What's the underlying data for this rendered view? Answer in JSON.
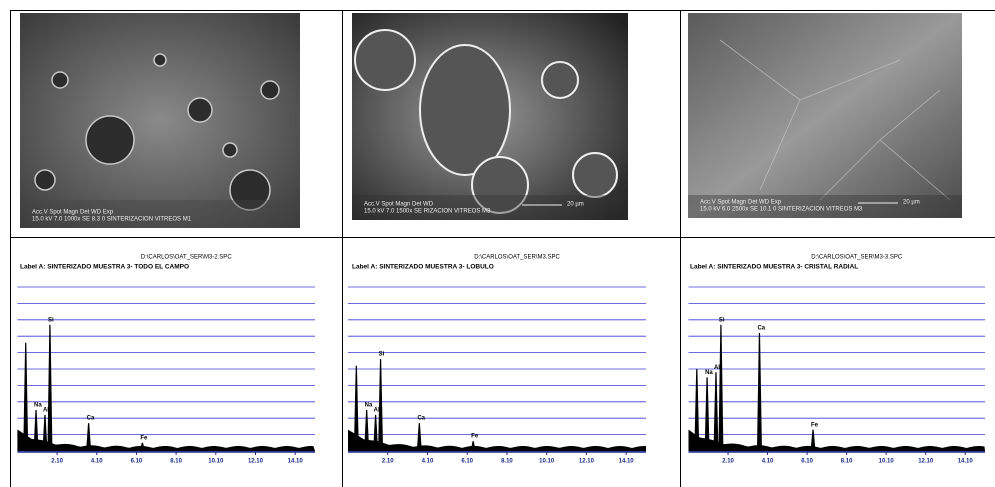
{
  "panels": [
    {
      "image": {
        "caption_top": "Acc.V  Spot Magn    Det  WD  Exp",
        "caption_bottom": "15.0 kV 7.0   1000x   SE   8.3   0    SINTERIZACION VITREOS M1",
        "scale": null
      },
      "spectrum": {
        "file": "D:\\CARLOS\\OAT_SER\\M3-2.SPC",
        "label": "Label A:  SINTERIZADO MUESTRA 3- TODO EL CAMPO",
        "xlim": [
          0.1,
          15.1
        ],
        "ylim": [
          0,
          100
        ],
        "xticks": [
          {
            "value": 2.1,
            "label": "2.10"
          },
          {
            "value": 4.1,
            "label": "4.10"
          },
          {
            "value": 6.1,
            "label": "6.10"
          },
          {
            "value": 8.1,
            "label": "8.10"
          },
          {
            "value": 10.1,
            "label": "10.10"
          },
          {
            "value": 12.1,
            "label": "12.10"
          },
          {
            "value": 14.1,
            "label": "14.10"
          }
        ],
        "peaks": [
          {
            "name": null,
            "x": 0.52,
            "y": 66
          },
          {
            "name": "Na",
            "x": 1.04,
            "y": 25
          },
          {
            "name": "Al",
            "x": 1.49,
            "y": 22
          },
          {
            "name": "Si",
            "x": 1.74,
            "y": 77
          },
          {
            "name": "Ca",
            "x": 3.69,
            "y": 17
          },
          {
            "name": "Fe",
            "x": 6.4,
            "y": 5
          }
        ]
      }
    },
    {
      "image": {
        "caption_top": "Acc.V  Spot Magn    Det  WD",
        "caption_bottom": "15.0 kV 7.0   1500x   SE    RIZACION VITREOS M3",
        "scale": "20 µm"
      },
      "spectrum": {
        "file": "D:\\CARLOS\\OAT_SER\\M3.SPC",
        "label": "Label A:  SINTERIZADO MUESTRA 3- LOBULO",
        "xlim": [
          0.1,
          15.1
        ],
        "ylim": [
          0,
          100
        ],
        "xticks": [
          {
            "value": 2.1,
            "label": "2.10"
          },
          {
            "value": 4.1,
            "label": "4.10"
          },
          {
            "value": 6.1,
            "label": "6.10"
          },
          {
            "value": 8.1,
            "label": "8.10"
          },
          {
            "value": 10.1,
            "label": "10.10"
          },
          {
            "value": 12.1,
            "label": "12.10"
          },
          {
            "value": 14.1,
            "label": "14.10"
          }
        ],
        "peaks": [
          {
            "name": null,
            "x": 0.52,
            "y": 52
          },
          {
            "name": "Na",
            "x": 1.04,
            "y": 25
          },
          {
            "name": "Al",
            "x": 1.49,
            "y": 22
          },
          {
            "name": "Si",
            "x": 1.74,
            "y": 56
          },
          {
            "name": "Ca",
            "x": 3.69,
            "y": 17
          },
          {
            "name": "Fe",
            "x": 6.4,
            "y": 6
          }
        ]
      }
    },
    {
      "image": {
        "caption_top": "Acc.V  Spot Magn    Det  WD  Exp",
        "caption_bottom": "15.0 kV 6.0   2500x   SE   10.1  0    SINTERIZACION VITREOS M3",
        "scale": "20 µm"
      },
      "spectrum": {
        "file": "D:\\CARLOS\\OAT_SER\\M3-3.SPC",
        "label": "Label A:  SINTERIZADO MUESTRA 3- CRISTAL RADIAL",
        "xlim": [
          0.1,
          15.1
        ],
        "ylim": [
          0,
          100
        ],
        "xticks": [
          {
            "value": 2.1,
            "label": "2.10"
          },
          {
            "value": 4.1,
            "label": "4.10"
          },
          {
            "value": 6.1,
            "label": "6.10"
          },
          {
            "value": 8.1,
            "label": "8.10"
          },
          {
            "value": 10.1,
            "label": "10.10"
          },
          {
            "value": 12.1,
            "label": "12.10"
          },
          {
            "value": 14.1,
            "label": "14.10"
          }
        ],
        "peaks": [
          {
            "name": null,
            "x": 0.52,
            "y": 50
          },
          {
            "name": "Na",
            "x": 1.04,
            "y": 45
          },
          {
            "name": "Al",
            "x": 1.49,
            "y": 48
          },
          {
            "name": "Si",
            "x": 1.74,
            "y": 77
          },
          {
            "name": "Ca",
            "x": 3.69,
            "y": 72
          },
          {
            "name": "Fe",
            "x": 6.4,
            "y": 13
          }
        ]
      }
    }
  ]
}
